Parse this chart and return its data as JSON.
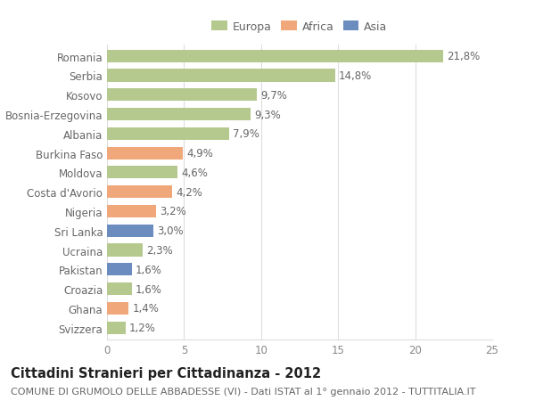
{
  "countries": [
    "Romania",
    "Serbia",
    "Kosovo",
    "Bosnia-Erzegovina",
    "Albania",
    "Burkina Faso",
    "Moldova",
    "Costa d'Avorio",
    "Nigeria",
    "Sri Lanka",
    "Ucraina",
    "Pakistan",
    "Croazia",
    "Ghana",
    "Svizzera"
  ],
  "values": [
    21.8,
    14.8,
    9.7,
    9.3,
    7.9,
    4.9,
    4.6,
    4.2,
    3.2,
    3.0,
    2.3,
    1.6,
    1.6,
    1.4,
    1.2
  ],
  "labels": [
    "21,8%",
    "14,8%",
    "9,7%",
    "9,3%",
    "7,9%",
    "4,9%",
    "4,6%",
    "4,2%",
    "3,2%",
    "3,0%",
    "2,3%",
    "1,6%",
    "1,6%",
    "1,4%",
    "1,2%"
  ],
  "continents": [
    "Europa",
    "Europa",
    "Europa",
    "Europa",
    "Europa",
    "Africa",
    "Europa",
    "Africa",
    "Africa",
    "Asia",
    "Europa",
    "Asia",
    "Europa",
    "Africa",
    "Europa"
  ],
  "colors": {
    "Europa": "#b5c98e",
    "Africa": "#f0a87a",
    "Asia": "#6b8cbf"
  },
  "title": "Cittadini Stranieri per Cittadinanza - 2012",
  "subtitle": "COMUNE DI GRUMOLO DELLE ABBADESSE (VI) - Dati ISTAT al 1° gennaio 2012 - TUTTITALIA.IT",
  "xlim": [
    0,
    25
  ],
  "xticks": [
    0,
    5,
    10,
    15,
    20,
    25
  ],
  "background_color": "#ffffff",
  "grid_color": "#dddddd",
  "bar_height": 0.65,
  "label_fontsize": 8.5,
  "tick_fontsize": 8.5,
  "title_fontsize": 10.5,
  "subtitle_fontsize": 8.0
}
